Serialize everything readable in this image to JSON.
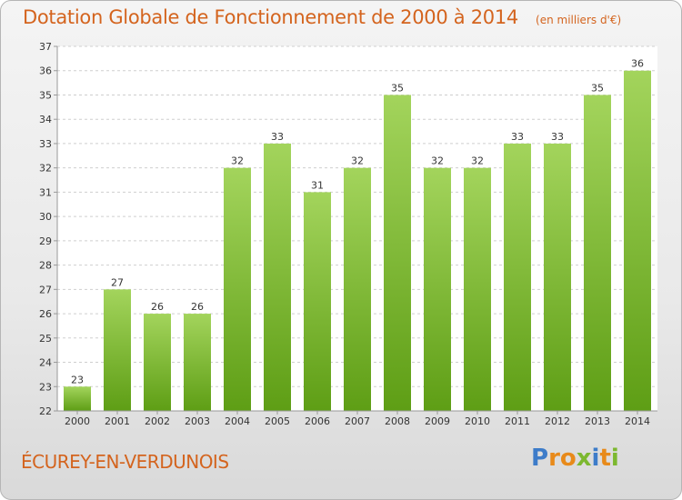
{
  "chart_data": {
    "type": "bar",
    "title": "Dotation Globale de Fonctionnement de 2000 à 2014",
    "unit_note": "(en milliers d'€)",
    "categories": [
      "2000",
      "2001",
      "2002",
      "2003",
      "2004",
      "2005",
      "2006",
      "2007",
      "2008",
      "2009",
      "2010",
      "2011",
      "2012",
      "2013",
      "2014"
    ],
    "values": [
      23,
      27,
      26,
      26,
      32,
      33,
      31,
      32,
      35,
      32,
      32,
      33,
      33,
      35,
      36
    ],
    "ylim": [
      22,
      37
    ],
    "yticks": [
      22,
      23,
      24,
      25,
      26,
      27,
      28,
      29,
      30,
      31,
      32,
      33,
      34,
      35,
      36,
      37
    ],
    "grid": true,
    "bar_color_top": "#a3d45c",
    "bar_color_bottom": "#5e9e15"
  },
  "location_name": "ÉCUREY-EN-VERDUNOIS",
  "brand": {
    "name": "Proxiti",
    "letters": [
      "P",
      "r",
      "o",
      "x",
      "i",
      "t",
      "i"
    ],
    "letter_colors": [
      "#3d7cc9",
      "#e88a1a",
      "#e88a1a",
      "#7cb82f",
      "#3d7cc9",
      "#e88a1a",
      "#7cb82f"
    ]
  }
}
